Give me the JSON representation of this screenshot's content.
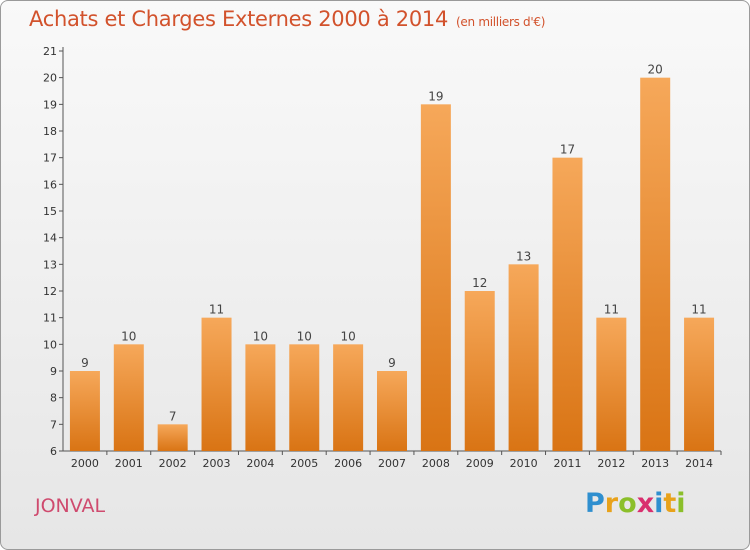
{
  "chart_data": {
    "type": "bar",
    "title": "Achats et Charges Externes 2000 à 2014",
    "subtitle": "(en milliers d'€)",
    "categories": [
      "2000",
      "2001",
      "2002",
      "2003",
      "2004",
      "2005",
      "2006",
      "2007",
      "2008",
      "2009",
      "2010",
      "2011",
      "2012",
      "2013",
      "2014"
    ],
    "values": [
      9,
      10,
      7,
      11,
      10,
      10,
      10,
      9,
      19,
      12,
      13,
      17,
      11,
      20,
      11
    ],
    "ylim": [
      6,
      21
    ],
    "yticks": [
      6,
      7,
      8,
      9,
      10,
      11,
      12,
      13,
      14,
      15,
      16,
      17,
      18,
      19,
      20,
      21
    ],
    "grid": false,
    "legend": "none"
  },
  "location": "JONVAL",
  "brand": {
    "letters": [
      "P",
      "r",
      "o",
      "x",
      "i",
      "t",
      "i"
    ],
    "colors": [
      "#2f8fcf",
      "#e8a21a",
      "#8bbf2a",
      "#d92f6e",
      "#2f8fcf",
      "#e8a21a",
      "#8bbf2a"
    ]
  },
  "colors": {
    "title": "#d2522c",
    "bar_top": "#f6a85a",
    "bar_bottom": "#d97414",
    "city": "#cf4a6e"
  }
}
